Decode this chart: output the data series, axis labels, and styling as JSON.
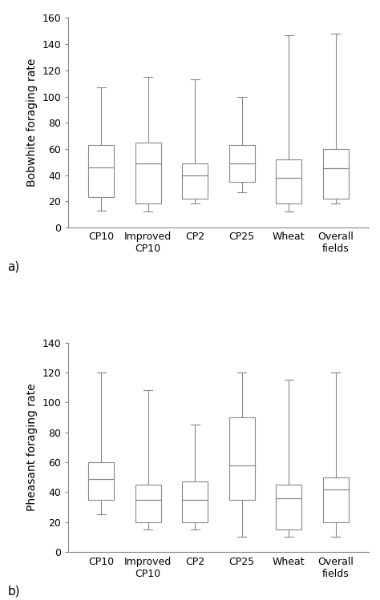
{
  "chart_a": {
    "ylabel": "Bobwhite foraging rate",
    "ylim": [
      0,
      160
    ],
    "yticks": [
      0,
      20,
      40,
      60,
      80,
      100,
      120,
      140,
      160
    ],
    "categories": [
      "CP10",
      "Improved\nCP10",
      "CP2",
      "CP25",
      "Wheat",
      "Overall\nfields"
    ],
    "boxes": [
      {
        "whisker_low": 13,
        "q1": 23,
        "median": 46,
        "q3": 63,
        "whisker_high": 107
      },
      {
        "whisker_low": 12,
        "q1": 18,
        "median": 49,
        "q3": 65,
        "whisker_high": 115
      },
      {
        "whisker_low": 18,
        "q1": 22,
        "median": 40,
        "q3": 49,
        "whisker_high": 113
      },
      {
        "whisker_low": 27,
        "q1": 35,
        "median": 49,
        "q3": 63,
        "whisker_high": 100
      },
      {
        "whisker_low": 12,
        "q1": 18,
        "median": 38,
        "q3": 52,
        "whisker_high": 147
      },
      {
        "whisker_low": 18,
        "q1": 22,
        "median": 45,
        "q3": 60,
        "whisker_high": 148
      }
    ],
    "label": "a)"
  },
  "chart_b": {
    "ylabel": "Pheasant foraging rate",
    "ylim": [
      0,
      140
    ],
    "yticks": [
      0,
      20,
      40,
      60,
      80,
      100,
      120,
      140
    ],
    "categories": [
      "CP10",
      "Improved\nCP10",
      "CP2",
      "CP25",
      "Wheat",
      "Overall\nfields"
    ],
    "boxes": [
      {
        "whisker_low": 25,
        "q1": 35,
        "median": 49,
        "q3": 60,
        "whisker_high": 120
      },
      {
        "whisker_low": 15,
        "q1": 20,
        "median": 35,
        "q3": 45,
        "whisker_high": 108
      },
      {
        "whisker_low": 15,
        "q1": 20,
        "median": 35,
        "q3": 47,
        "whisker_high": 85
      },
      {
        "whisker_low": 10,
        "q1": 35,
        "median": 58,
        "q3": 90,
        "whisker_high": 120
      },
      {
        "whisker_low": 10,
        "q1": 15,
        "median": 36,
        "q3": 45,
        "whisker_high": 115
      },
      {
        "whisker_low": 10,
        "q1": 20,
        "median": 42,
        "q3": 50,
        "whisker_high": 120
      }
    ],
    "label": "b)"
  },
  "box_edge_color": "#888888",
  "median_color": "#888888",
  "whisker_color": "#888888",
  "background_color": "#ffffff",
  "outer_background": "#f0f0f0",
  "label_fontsize": 9,
  "tick_fontsize": 9,
  "ylabel_fontsize": 10,
  "box_width": 0.55,
  "cap_ratio": 0.35
}
